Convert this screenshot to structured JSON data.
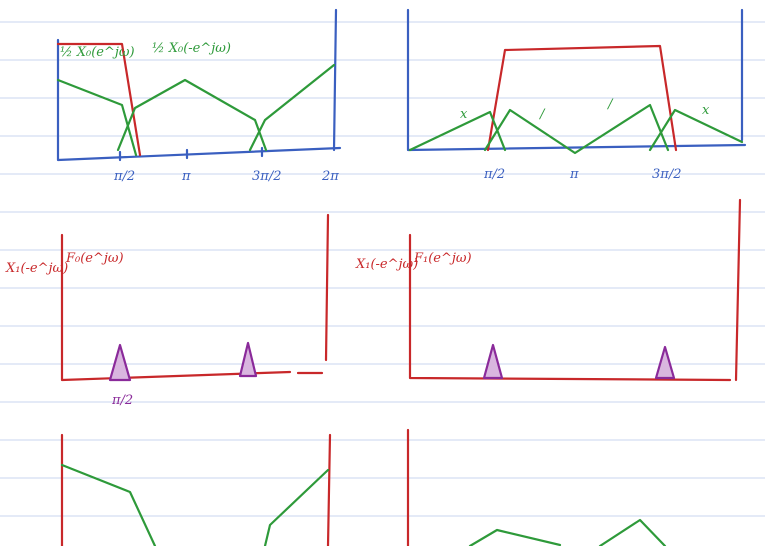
{
  "top_left": {
    "label_x0": "½ X₀(e^jω)",
    "label_x0_shift": "½ X₀(-e^jω)",
    "ticks": [
      "π/2",
      "π",
      "3π/2",
      "2π"
    ]
  },
  "top_right": {
    "marks": [
      "x",
      "/",
      "/",
      "x"
    ],
    "ticks": [
      "π/2",
      "π",
      "3π/2"
    ]
  },
  "middle_left": {
    "label_x1": "X₁(-e^jω)",
    "label_f": "F₀(e^jω)",
    "tick": "π/2"
  },
  "middle_right": {
    "label_x1": "X₁(-e^jω)",
    "label_f": "F₁(e^jω)"
  }
}
